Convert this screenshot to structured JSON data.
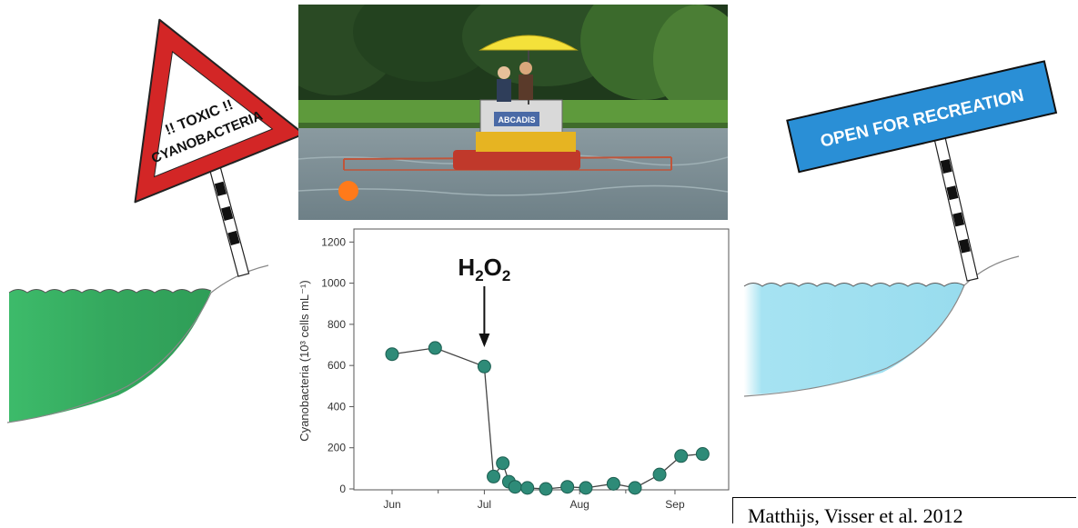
{
  "colors": {
    "toxic_water": "#3dbb6a",
    "clean_water": "#a6e3f2",
    "sign_red": "#d32626",
    "sign_blue": "#2a8fd6",
    "marker": "#2e8b78"
  },
  "left_sign": {
    "line1": "!! TOXIC !!",
    "line2": "CYANOBACTERIA"
  },
  "right_sign": {
    "text": "OPEN FOR RECREATION"
  },
  "photo": {
    "boat_label": "ABCADIS"
  },
  "chart_data": {
    "type": "scatter",
    "ylabel": "Cyanobacteria (10³ cells mL⁻¹)",
    "xlabel": "",
    "xticks": [
      "Jun",
      "Jul",
      "Aug",
      "Sep"
    ],
    "yticks": [
      0,
      200,
      400,
      600,
      800,
      1000,
      1200
    ],
    "ylim": [
      0,
      1250
    ],
    "grid": false,
    "annotation": {
      "label": "H2O2",
      "x": "Jul 1"
    },
    "points": [
      {
        "x": "Jun 1",
        "y": 655
      },
      {
        "x": "Jun 15",
        "y": 685
      },
      {
        "x": "Jul 1",
        "y": 595
      },
      {
        "x": "Jul 4",
        "y": 60
      },
      {
        "x": "Jul 7",
        "y": 125
      },
      {
        "x": "Jul 9",
        "y": 35
      },
      {
        "x": "Jul 11",
        "y": 10
      },
      {
        "x": "Jul 15",
        "y": 5
      },
      {
        "x": "Jul 21",
        "y": 0
      },
      {
        "x": "Jul 28",
        "y": 10
      },
      {
        "x": "Aug 3",
        "y": 5
      },
      {
        "x": "Aug 12",
        "y": 25
      },
      {
        "x": "Aug 19",
        "y": 5
      },
      {
        "x": "Aug 27",
        "y": 70
      },
      {
        "x": "Sep 3",
        "y": 160
      },
      {
        "x": "Sep 10",
        "y": 170
      }
    ]
  },
  "citation": "Matthijs, Visser et al. 2012"
}
